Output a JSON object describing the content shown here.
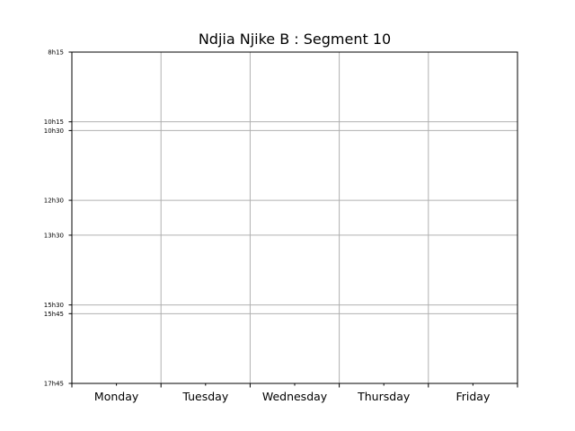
{
  "chart_data": {
    "type": "table",
    "title": "Ndjia Njike B : Segment 10",
    "xlabel": "",
    "ylabel": "",
    "x_categories": [
      "Monday",
      "Tuesday",
      "Wednesday",
      "Thursday",
      "Friday"
    ],
    "y_ticks": [
      {
        "label": "8h15",
        "minutes": 495
      },
      {
        "label": "10h15",
        "minutes": 615
      },
      {
        "label": "10h30",
        "minutes": 630
      },
      {
        "label": "12h30",
        "minutes": 750
      },
      {
        "label": "13h30",
        "minutes": 810
      },
      {
        "label": "15h30",
        "minutes": 930
      },
      {
        "label": "15h45",
        "minutes": 945
      },
      {
        "label": "17h45",
        "minutes": 1065
      }
    ],
    "ylim": [
      495,
      1065
    ],
    "y_inverted": true,
    "grid": true,
    "colors": {
      "grid": "#b0b0b0",
      "frame": "#000000"
    }
  }
}
